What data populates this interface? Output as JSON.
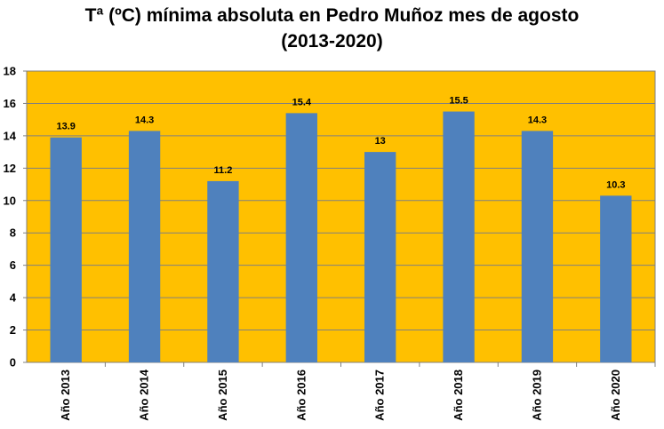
{
  "chart_data": {
    "type": "bar",
    "title_line1": "Tª (ºC) mínima absoluta en Pedro Muñoz mes de agosto",
    "title_line2": "(2013-2020)",
    "xlabel": "",
    "ylabel": "",
    "categories": [
      "Año 2013",
      "Año 2014",
      "Año 2015",
      "Año 2016",
      "Año 2017",
      "Año 2018",
      "Año 2019",
      "Año 2020"
    ],
    "values": [
      13.9,
      14.3,
      11.2,
      15.4,
      13,
      15.5,
      14.3,
      10.3
    ],
    "data_labels": [
      "13.9",
      "14.3",
      "11.2",
      "15.4",
      "13",
      "15.5",
      "14.3",
      "10.3"
    ],
    "ylim": [
      0,
      18
    ],
    "yticks": [
      0,
      2,
      4,
      6,
      8,
      10,
      12,
      14,
      16,
      18
    ],
    "grid": true,
    "legend": "none",
    "colors": {
      "bar": "#4F81BD",
      "plot_background": "#FFC000",
      "gridline": "#808080"
    }
  }
}
